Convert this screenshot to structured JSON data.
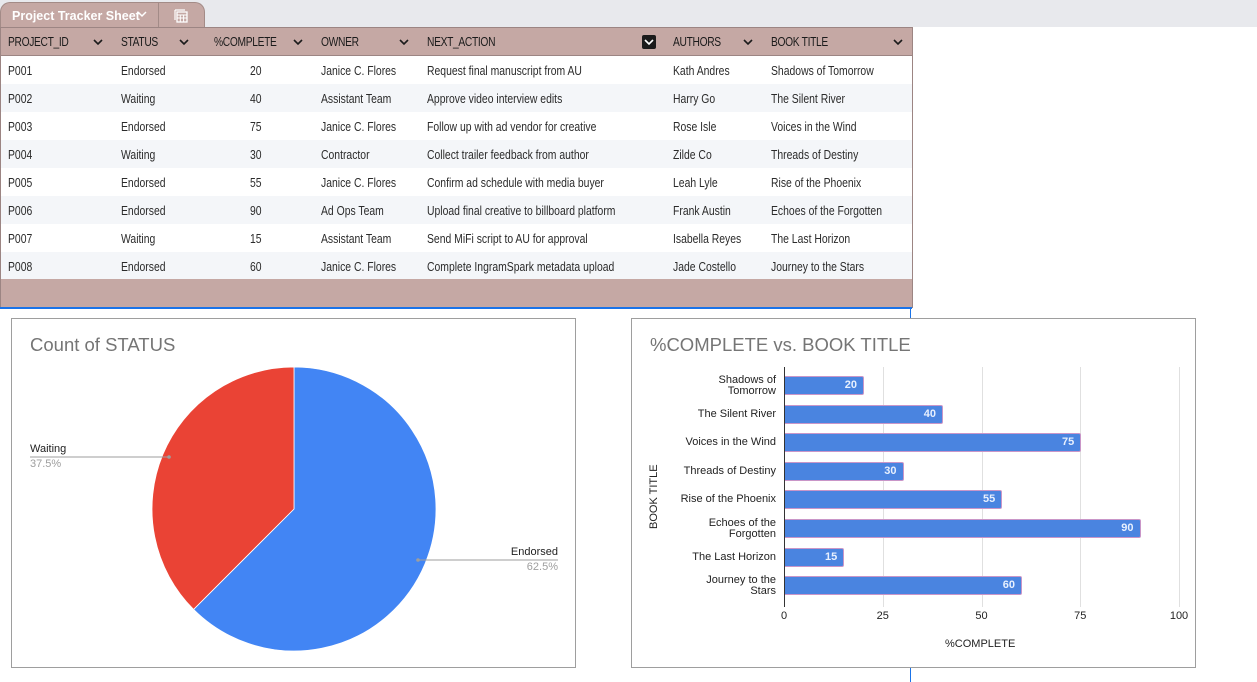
{
  "sheet_tab": {
    "label": "Project Tracker Sheet",
    "chevron_icon": "chevron-down-icon",
    "table_icon": "table-view-icon"
  },
  "table": {
    "columns": [
      {
        "key": "project_id",
        "label": "PROJECT_ID"
      },
      {
        "key": "status",
        "label": "STATUS"
      },
      {
        "key": "complete",
        "label": "%COMPLETE"
      },
      {
        "key": "owner",
        "label": "OWNER"
      },
      {
        "key": "next_action",
        "label": "NEXT_ACTION",
        "filter_active": true
      },
      {
        "key": "authors",
        "label": "AUTHORS"
      },
      {
        "key": "book_title",
        "label": "BOOK TITLE"
      }
    ],
    "rows": [
      {
        "project_id": "P001",
        "status": "Endorsed",
        "complete": "20",
        "owner": "Janice C. Flores",
        "next_action": "Request final manuscript from AU",
        "authors": "Kath Andres",
        "book_title": "Shadows of Tomorrow"
      },
      {
        "project_id": "P002",
        "status": "Waiting",
        "complete": "40",
        "owner": "Assistant Team",
        "next_action": "Approve video interview edits",
        "authors": "Harry Go",
        "book_title": "The Silent River"
      },
      {
        "project_id": "P003",
        "status": "Endorsed",
        "complete": "75",
        "owner": "Janice C. Flores",
        "next_action": "Follow up with ad vendor for creative",
        "authors": "Rose Isle",
        "book_title": "Voices in the Wind"
      },
      {
        "project_id": "P004",
        "status": "Waiting",
        "complete": "30",
        "owner": "Contractor",
        "next_action": "Collect trailer feedback from author",
        "authors": "Zilde Co",
        "book_title": "Threads of Destiny"
      },
      {
        "project_id": "P005",
        "status": "Endorsed",
        "complete": "55",
        "owner": "Janice C. Flores",
        "next_action": "Confirm ad schedule with media buyer",
        "authors": "Leah Lyle",
        "book_title": "Rise of the Phoenix"
      },
      {
        "project_id": "P006",
        "status": "Endorsed",
        "complete": "90",
        "owner": "Ad Ops Team",
        "next_action": "Upload final creative to billboard platform",
        "authors": "Frank Austin",
        "book_title": "Echoes of the Forgotten"
      },
      {
        "project_id": "P007",
        "status": "Waiting",
        "complete": "15",
        "owner": "Assistant Team",
        "next_action": "Send MiFi script to AU for approval",
        "authors": "Isabella Reyes",
        "book_title": "The Last Horizon"
      },
      {
        "project_id": "P008",
        "status": "Endorsed",
        "complete": "60",
        "owner": "Janice C. Flores",
        "next_action": "Complete IngramSpark metadata upload",
        "authors": "Jade Costello",
        "book_title": "Journey to the Stars"
      }
    ]
  },
  "colors": {
    "header_bg": "#c5a8a4",
    "selection": "#1a73e8",
    "pie_endorsed": "#4285f4",
    "pie_waiting": "#ea4335",
    "bar": "#4a84e0"
  },
  "chart_data": [
    {
      "type": "pie",
      "title": "Count of STATUS",
      "categories": [
        "Endorsed",
        "Waiting"
      ],
      "values": [
        5,
        3
      ],
      "percent_labels": [
        "62.5%",
        "37.5%"
      ],
      "colors": [
        "#4285f4",
        "#ea4335"
      ],
      "legend_position": "labeled"
    },
    {
      "type": "bar",
      "orientation": "horizontal",
      "title": "%COMPLETE vs. BOOK TITLE",
      "categories": [
        "Shadows of Tomorrow",
        "The Silent River",
        "Voices in the Wind",
        "Threads of Destiny",
        "Rise of the Phoenix",
        "Echoes of the Forgotten",
        "The Last Horizon",
        "Journey to the Stars"
      ],
      "category_lines": [
        [
          "Shadows of",
          "Tomorrow"
        ],
        [
          "The Silent River"
        ],
        [
          "Voices in the Wind"
        ],
        [
          "Threads of Destiny"
        ],
        [
          "Rise of the Phoenix"
        ],
        [
          "Echoes of the",
          "Forgotten"
        ],
        [
          "The Last Horizon"
        ],
        [
          "Journey to the",
          "Stars"
        ]
      ],
      "values": [
        20,
        40,
        75,
        30,
        55,
        90,
        15,
        60
      ],
      "xlabel": "%COMPLETE",
      "ylabel": "BOOK TITLE",
      "xlim": [
        0,
        100
      ],
      "xticks": [
        "0",
        "25",
        "50",
        "75",
        "100"
      ],
      "grid": true,
      "data_labels": true
    }
  ]
}
